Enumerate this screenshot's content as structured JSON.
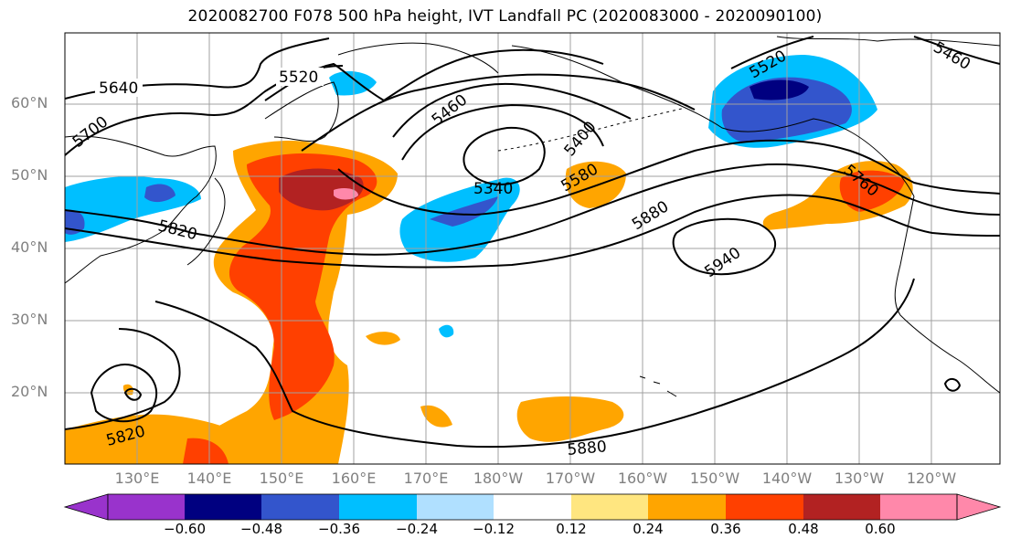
{
  "title": "2020082700 F078 500 hPa height, IVT Landfall PC (2020083000 - 2020090100)",
  "lat_labels": [
    "60°N",
    "50°N",
    "40°N",
    "30°N",
    "20°N"
  ],
  "lon_labels": [
    "130°E",
    "140°E",
    "150°E",
    "160°E",
    "170°E",
    "180°W",
    "170°W",
    "160°W",
    "150°W",
    "140°W",
    "130°W",
    "120°W"
  ],
  "contour_labels": [
    "5640",
    "5520",
    "5700",
    "5820",
    "5460",
    "5340",
    "5400",
    "5580",
    "5880",
    "5940",
    "5520",
    "5460",
    "5760",
    "5820",
    "5880"
  ],
  "colorbar": {
    "ticks": [
      "−0.60",
      "−0.48",
      "−0.36",
      "−0.24",
      "−0.12",
      "0.12",
      "0.24",
      "0.36",
      "0.48",
      "0.60"
    ],
    "colors": [
      "#9933cc",
      "#000080",
      "#3355cc",
      "#00bfff",
      "#b0e0ff",
      "#ffffff",
      "#ffe680",
      "#ffa500",
      "#ff4000",
      "#b22222",
      "#ff88aa",
      "#ff88aa"
    ]
  },
  "fill_colors": {
    "neg_light": "#00bfff",
    "neg_mid": "#3355cc",
    "neg_dark": "#000080",
    "pos_light": "#ffa500",
    "pos_mid": "#ff4000",
    "pos_dark": "#b22222",
    "pos_max": "#ff88aa"
  }
}
